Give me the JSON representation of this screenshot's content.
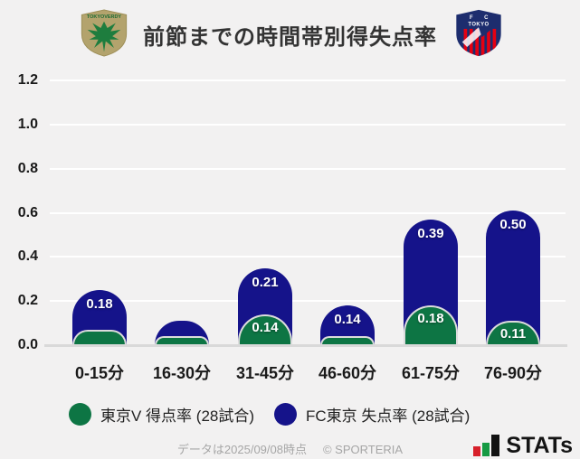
{
  "header": {
    "title": "前節までの時間帯別得失点率"
  },
  "logos": {
    "verdy_wordmark": "TOKYOVERDY",
    "fctokyo_line1": "F C",
    "fctokyo_line2": "TOKYO"
  },
  "chart_data": {
    "type": "bar",
    "stacked": true,
    "title": "前節までの時間帯別得失点率",
    "categories": [
      "0-15分",
      "16-30分",
      "31-45分",
      "46-60分",
      "61-75分",
      "76-90分"
    ],
    "series": [
      {
        "name": "東京V 得点率 (28試合)",
        "color": "#0d7544",
        "values": [
          0.07,
          0.04,
          0.14,
          0.04,
          0.18,
          0.11
        ],
        "value_labels": [
          "",
          "",
          "0.14",
          "",
          "0.18",
          "0.11"
        ]
      },
      {
        "name": "FC東京 失点率 (28試合)",
        "color": "#15138a",
        "values": [
          0.18,
          0.07,
          0.21,
          0.14,
          0.39,
          0.5
        ],
        "value_labels": [
          "0.18",
          "",
          "0.21",
          "0.14",
          "0.39",
          "0.50"
        ]
      }
    ],
    "y_ticks": [
      1.2,
      1.0,
      0.8,
      0.6,
      0.4,
      0.2,
      0.0
    ],
    "ylim": [
      0,
      1.2
    ],
    "grid": true,
    "legend_position": "bottom",
    "background": "#f2f1f1"
  },
  "footer": {
    "note": "データは2025/09/08時点",
    "copyright": "© SPORTERIA",
    "brand": "STATs"
  }
}
